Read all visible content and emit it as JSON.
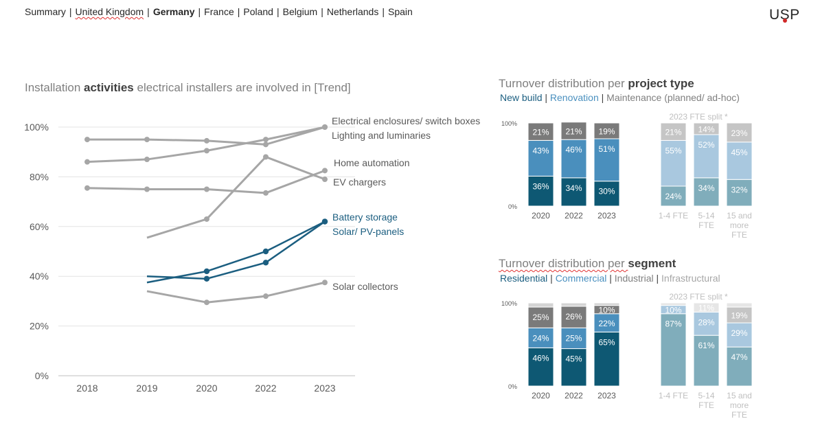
{
  "nav": {
    "items": [
      "Summary",
      "United Kingdom",
      "Germany",
      "France",
      "Poland",
      "Belgium",
      "Netherlands",
      "Spain"
    ],
    "active": "Germany",
    "separator": "|"
  },
  "logo": {
    "text": "USP"
  },
  "line_chart_title": {
    "pre": "Installation ",
    "bold": "activities",
    "post": " electrical installers are involved in [Trend]"
  },
  "project_title": {
    "pre": "Turnover distribution per ",
    "bold": "project type"
  },
  "project_subtitle": [
    {
      "text": "New build",
      "color": "#1b5e80"
    },
    {
      "text": "Renovation",
      "color": "#4a90bf"
    },
    {
      "text": "Maintenance (planned/ ad-hoc)",
      "color": "#7f7f7f"
    }
  ],
  "segment_title": {
    "pre": "Turnover distribution per ",
    "bold": "segment"
  },
  "segment_subtitle": [
    {
      "text": "Residential",
      "color": "#1b5e80"
    },
    {
      "text": "Commercial",
      "color": "#4a90bf"
    },
    {
      "text": "Industrial",
      "color": "#7f7f7f"
    },
    {
      "text": "Infrastructural",
      "color": "#a6a6a6"
    }
  ],
  "chart_data": [
    {
      "type": "line",
      "title": "Installation activities electrical installers are involved in [Trend]",
      "x": [
        "2018",
        "2019",
        "2020",
        "2022",
        "2023"
      ],
      "ylim": [
        0,
        100
      ],
      "y_ticks": [
        "0%",
        "20%",
        "40%",
        "60%",
        "80%",
        "100%"
      ],
      "grid": true,
      "series": [
        {
          "name": "Electrical enclosures/ switch boxes",
          "values": [
            86,
            87,
            90.5,
            95,
            100
          ],
          "color": "#a6a6a6"
        },
        {
          "name": "Lighting and luminaries",
          "values": [
            95,
            95,
            94.5,
            93,
            100
          ],
          "color": "#a6a6a6"
        },
        {
          "name": "Home automation",
          "values": [
            75.5,
            75,
            75,
            73.5,
            82.5
          ],
          "color": "#a6a6a6"
        },
        {
          "name": "EV chargers",
          "values": [
            null,
            55.5,
            63,
            88,
            79
          ],
          "color": "#a6a6a6"
        },
        {
          "name": "Battery storage",
          "values": [
            null,
            40,
            39,
            45.5,
            62
          ],
          "color": "#1b5e80"
        },
        {
          "name": "Solar/ PV-panels",
          "values": [
            null,
            37.5,
            42,
            50,
            62
          ],
          "color": "#1b5e80"
        },
        {
          "name": "Solar collectors",
          "values": [
            null,
            34,
            29.5,
            32,
            37.5
          ],
          "color": "#a6a6a6"
        }
      ]
    },
    {
      "type": "bar",
      "stacked": true,
      "title": "Turnover distribution per project type",
      "y_ticks": [
        "0%",
        "100%"
      ],
      "split_label": "2023 FTE split *",
      "categories": [
        "2020",
        "2022",
        "2023",
        "1-4 FTE",
        "5-14 FTE",
        "15 and more FTE"
      ],
      "series": [
        {
          "name": "New build",
          "values": [
            36,
            34,
            30,
            24,
            34,
            32
          ]
        },
        {
          "name": "Renovation",
          "values": [
            43,
            46,
            51,
            55,
            52,
            45
          ]
        },
        {
          "name": "Maintenance (planned/ ad-hoc)",
          "values": [
            21,
            21,
            19,
            21,
            14,
            23
          ]
        }
      ]
    },
    {
      "type": "bar",
      "stacked": true,
      "title": "Turnover distribution per segment",
      "y_ticks": [
        "0%",
        "100%"
      ],
      "split_label": "2023 FTE split *",
      "categories": [
        "2020",
        "2022",
        "2023",
        "1-4 FTE",
        "5-14 FTE",
        "15 and more FTE"
      ],
      "series": [
        {
          "name": "Residential",
          "values": [
            46,
            45,
            65,
            87,
            61,
            47
          ]
        },
        {
          "name": "Commercial",
          "values": [
            24,
            25,
            22,
            10,
            28,
            29
          ]
        },
        {
          "name": "Industrial",
          "values": [
            25,
            26,
            10,
            null,
            null,
            19
          ]
        },
        {
          "name": "Infrastructural",
          "values": [
            5,
            4,
            3,
            3,
            11,
            5
          ]
        }
      ]
    }
  ],
  "bar_colors": {
    "solid": [
      "#0e5873",
      "#4a8fbd",
      "#7a7a7a",
      "#d4d4d4"
    ],
    "light": [
      "#80adbb",
      "#a9c8df",
      "#c5c5c5",
      "#e6e6e6"
    ]
  }
}
